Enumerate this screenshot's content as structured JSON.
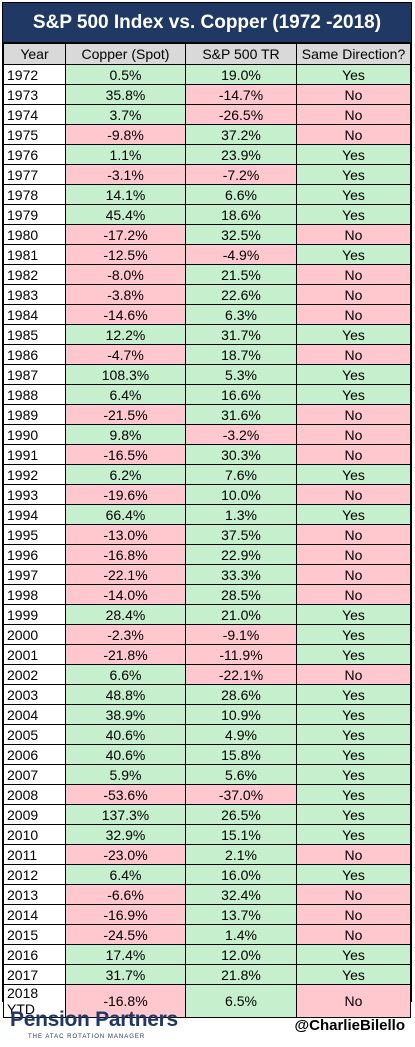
{
  "title": "S&P 500 Index vs. Copper (1972 -2018)",
  "colors": {
    "title_bg": "#1f3864",
    "positive": "#c6efce",
    "negative": "#ffc7ce",
    "header_bg": "#d9d9d9"
  },
  "chart_data": {
    "type": "table",
    "columns": [
      "Year",
      "Copper (Spot)",
      "S&P 500 TR",
      "Same Direction?"
    ],
    "rows": [
      [
        "1972",
        "0.5%",
        "19.0%",
        "Yes"
      ],
      [
        "1973",
        "35.8%",
        "-14.7%",
        "No"
      ],
      [
        "1974",
        "3.7%",
        "-26.5%",
        "No"
      ],
      [
        "1975",
        "-9.8%",
        "37.2%",
        "No"
      ],
      [
        "1976",
        "1.1%",
        "23.9%",
        "Yes"
      ],
      [
        "1977",
        "-3.1%",
        "-7.2%",
        "Yes"
      ],
      [
        "1978",
        "14.1%",
        "6.6%",
        "Yes"
      ],
      [
        "1979",
        "45.4%",
        "18.6%",
        "Yes"
      ],
      [
        "1980",
        "-17.2%",
        "32.5%",
        "No"
      ],
      [
        "1981",
        "-12.5%",
        "-4.9%",
        "Yes"
      ],
      [
        "1982",
        "-8.0%",
        "21.5%",
        "No"
      ],
      [
        "1983",
        "-3.8%",
        "22.6%",
        "No"
      ],
      [
        "1984",
        "-14.6%",
        "6.3%",
        "No"
      ],
      [
        "1985",
        "12.2%",
        "31.7%",
        "Yes"
      ],
      [
        "1986",
        "-4.7%",
        "18.7%",
        "No"
      ],
      [
        "1987",
        "108.3%",
        "5.3%",
        "Yes"
      ],
      [
        "1988",
        "6.4%",
        "16.6%",
        "Yes"
      ],
      [
        "1989",
        "-21.5%",
        "31.6%",
        "No"
      ],
      [
        "1990",
        "9.8%",
        "-3.2%",
        "No"
      ],
      [
        "1991",
        "-16.5%",
        "30.3%",
        "No"
      ],
      [
        "1992",
        "6.2%",
        "7.6%",
        "Yes"
      ],
      [
        "1993",
        "-19.6%",
        "10.0%",
        "No"
      ],
      [
        "1994",
        "66.4%",
        "1.3%",
        "Yes"
      ],
      [
        "1995",
        "-13.0%",
        "37.5%",
        "No"
      ],
      [
        "1996",
        "-16.8%",
        "22.9%",
        "No"
      ],
      [
        "1997",
        "-22.1%",
        "33.3%",
        "No"
      ],
      [
        "1998",
        "-14.0%",
        "28.5%",
        "No"
      ],
      [
        "1999",
        "28.4%",
        "21.0%",
        "Yes"
      ],
      [
        "2000",
        "-2.3%",
        "-9.1%",
        "Yes"
      ],
      [
        "2001",
        "-21.8%",
        "-11.9%",
        "Yes"
      ],
      [
        "2002",
        "6.6%",
        "-22.1%",
        "No"
      ],
      [
        "2003",
        "48.8%",
        "28.6%",
        "Yes"
      ],
      [
        "2004",
        "38.9%",
        "10.9%",
        "Yes"
      ],
      [
        "2005",
        "40.6%",
        "4.9%",
        "Yes"
      ],
      [
        "2006",
        "40.6%",
        "15.8%",
        "Yes"
      ],
      [
        "2007",
        "5.9%",
        "5.6%",
        "Yes"
      ],
      [
        "2008",
        "-53.6%",
        "-37.0%",
        "Yes"
      ],
      [
        "2009",
        "137.3%",
        "26.5%",
        "Yes"
      ],
      [
        "2010",
        "32.9%",
        "15.1%",
        "Yes"
      ],
      [
        "2011",
        "-23.0%",
        "2.1%",
        "No"
      ],
      [
        "2012",
        "6.4%",
        "16.0%",
        "Yes"
      ],
      [
        "2013",
        "-6.6%",
        "32.4%",
        "No"
      ],
      [
        "2014",
        "-16.9%",
        "13.7%",
        "No"
      ],
      [
        "2015",
        "-24.5%",
        "1.4%",
        "No"
      ],
      [
        "2016",
        "17.4%",
        "12.0%",
        "Yes"
      ],
      [
        "2017",
        "31.7%",
        "21.8%",
        "Yes"
      ],
      [
        "2018 YTD",
        "-16.8%",
        "6.5%",
        "No"
      ]
    ]
  },
  "footer": {
    "brand": "Pension Partners",
    "brand_tagline": "THE ATAC ROTATION MANAGER",
    "handle": "@CharlieBilello"
  }
}
